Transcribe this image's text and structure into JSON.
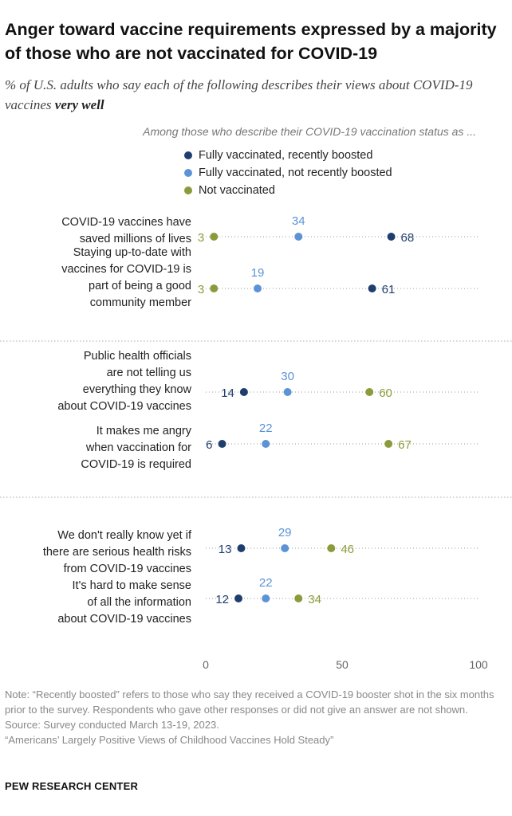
{
  "title": "Anger toward vaccine requirements expressed by a majority of those who are not vaccinated for COVID-19",
  "subtitle": {
    "main": "% of U.S. adults who say each of the following describes their views about COVID-19 vaccines ",
    "emphasis": "very well"
  },
  "group_caption": "Among those who describe their COVID-19 vaccination status as ...",
  "notes": {
    "note": "Note: “Recently boosted” refers to those who say they received a COVID-19 booster shot in the six months prior to the survey. Respondents who gave other responses or did not give an answer are not shown.",
    "source": "Source: Survey conducted March 13-19, 2023.",
    "report": "“Americans’ Largely Positive Views of Childhood Vaccines Hold Steady”"
  },
  "credit": "PEW RESEARCH CENTER",
  "chart_data": {
    "type": "scatter",
    "subtype": "dot-plot",
    "xlim": [
      0,
      100
    ],
    "xticks": [
      0,
      50,
      100
    ],
    "grid": "dotted row lines",
    "legend_position": "top",
    "series": [
      {
        "name": "Fully vaccinated, recently boosted",
        "color": "#1f3e6f",
        "values": [
          68,
          61,
          14,
          6,
          13,
          12
        ]
      },
      {
        "name": "Fully vaccinated, not recently boosted",
        "color": "#5b93d6",
        "values": [
          34,
          19,
          30,
          22,
          29,
          22
        ]
      },
      {
        "name": "Not vaccinated",
        "color": "#8b9b3a",
        "values": [
          3,
          3,
          60,
          67,
          46,
          34
        ]
      }
    ],
    "categories": [
      [
        "COVID-19 vaccines have",
        "saved millions of lives"
      ],
      [
        "Staying up-to-date with",
        "vaccines for COVID-19 is",
        "part of being a good",
        "community member"
      ],
      [
        "Public health officials",
        "are not telling us",
        "everything they know",
        "about COVID-19 vaccines"
      ],
      [
        "It makes me angry",
        "when vaccination for",
        "COVID-19 is required"
      ],
      [
        "We don't really know yet if",
        "there are serious health risks",
        "from COVID-19 vaccines"
      ],
      [
        "It's hard to make sense",
        "of all the information",
        "about COVID-19 vaccines"
      ]
    ]
  }
}
